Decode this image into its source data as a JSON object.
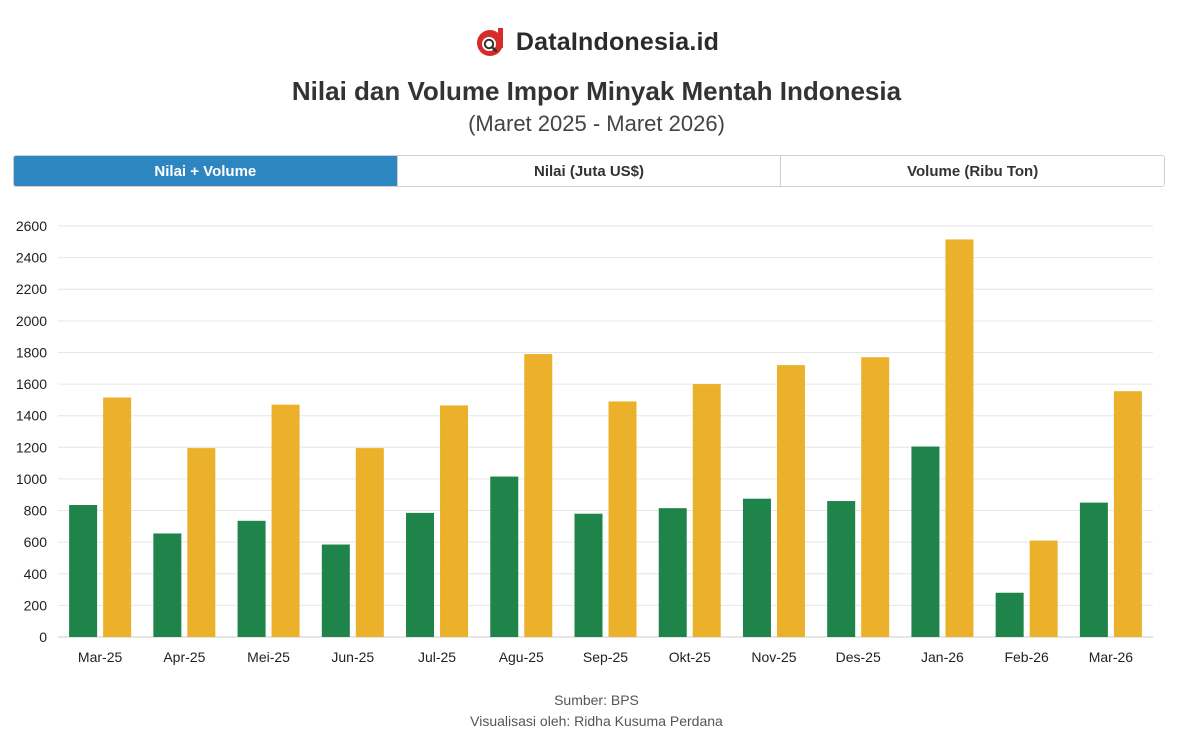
{
  "brand": {
    "name": "DataIndonesia.id",
    "logo_icon": "dataindonesia-logo-icon"
  },
  "header": {
    "title": "Nilai dan Volume Impor Minyak Mentah Indonesia",
    "subtitle": "(Maret 2025 - Maret 2026)"
  },
  "tabs": [
    {
      "label": "Nilai + Volume",
      "active": true
    },
    {
      "label": "Nilai (Juta US$)",
      "active": false
    },
    {
      "label": "Volume (Ribu Ton)",
      "active": false
    }
  ],
  "colors": {
    "nilai": "#1e8449",
    "volume": "#ebb12a",
    "active_tab": "#2e86c1"
  },
  "chart_data": {
    "type": "bar",
    "categories": [
      "Mar-25",
      "Apr-25",
      "Mei-25",
      "Jun-25",
      "Jul-25",
      "Agu-25",
      "Sep-25",
      "Okt-25",
      "Nov-25",
      "Des-25",
      "Jan-26",
      "Feb-26",
      "Mar-26"
    ],
    "series": [
      {
        "color": "#1e8449",
        "values": [
          835,
          655,
          735,
          585,
          785,
          1015,
          780,
          815,
          875,
          860,
          1205,
          280,
          850
        ]
      },
      {
        "color": "#ebb12a",
        "values": [
          1515,
          1195,
          1470,
          1195,
          1465,
          1790,
          1490,
          1600,
          1720,
          1770,
          2515,
          610,
          1555
        ]
      }
    ],
    "yticks": [
      0,
      200,
      400,
      600,
      800,
      1000,
      1200,
      1400,
      1600,
      1800,
      2000,
      2200,
      2400,
      2600
    ],
    "ylim": [
      0,
      2600
    ],
    "grid": true,
    "legend": "none"
  },
  "footer": {
    "source": "Sumber: BPS",
    "credit": "Visualisasi oleh: Ridha Kusuma Perdana"
  }
}
